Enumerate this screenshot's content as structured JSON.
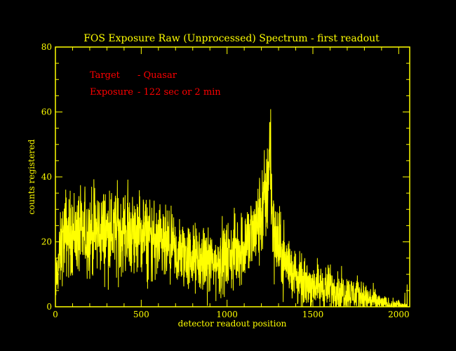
{
  "colors": {
    "background": "#000000",
    "axis": "#ffff00",
    "data": "#ffff00",
    "annotation": "#ff0000"
  },
  "chart_data": {
    "type": "line",
    "title": "FOS Exposure Raw (Unprocessed) Spectrum - first readout",
    "xlabel": "detector readout position",
    "ylabel": "counts registered",
    "xlim": [
      0,
      2064
    ],
    "ylim": [
      0,
      80
    ],
    "xticks": [
      0,
      500,
      1000,
      1500,
      2000
    ],
    "xtick_labels": [
      "0",
      "500",
      "1000",
      "1500",
      "2000"
    ],
    "yticks": [
      0,
      20,
      40,
      60,
      80
    ],
    "ytick_labels": [
      "0",
      "20",
      "40",
      "60",
      "80"
    ],
    "grid": false,
    "annotations": [
      {
        "label": "Target",
        "value": "- Quasar"
      },
      {
        "label": "Exposure",
        "value": "- 122 sec or 2 min"
      }
    ],
    "series": [
      {
        "x": [
          0,
          20,
          40,
          60,
          80,
          100,
          150,
          200,
          300,
          400,
          500,
          550,
          600,
          650,
          700,
          750,
          800,
          850,
          900,
          950,
          1000,
          1050,
          1100,
          1150,
          1180,
          1200,
          1220,
          1235,
          1240,
          1250,
          1255,
          1260,
          1270,
          1280,
          1290,
          1300,
          1320,
          1340,
          1360,
          1380,
          1400,
          1420,
          1450,
          1500,
          1550,
          1600,
          1650,
          1700,
          1750,
          1800,
          1850,
          1900,
          1950,
          2000,
          2050
        ],
        "y": [
          6,
          14,
          20,
          23,
          22,
          23,
          22,
          23,
          23,
          23,
          22,
          21,
          19,
          18,
          16,
          16,
          15,
          14,
          14,
          13,
          15,
          17,
          19,
          22,
          25,
          28,
          32,
          37,
          42,
          44,
          37,
          30,
          25,
          22,
          20,
          18,
          16,
          14,
          13,
          11,
          10,
          8,
          7,
          7,
          6,
          6,
          5,
          4,
          4,
          3,
          2,
          1,
          0.5,
          0.3,
          0.2
        ]
      }
    ]
  }
}
